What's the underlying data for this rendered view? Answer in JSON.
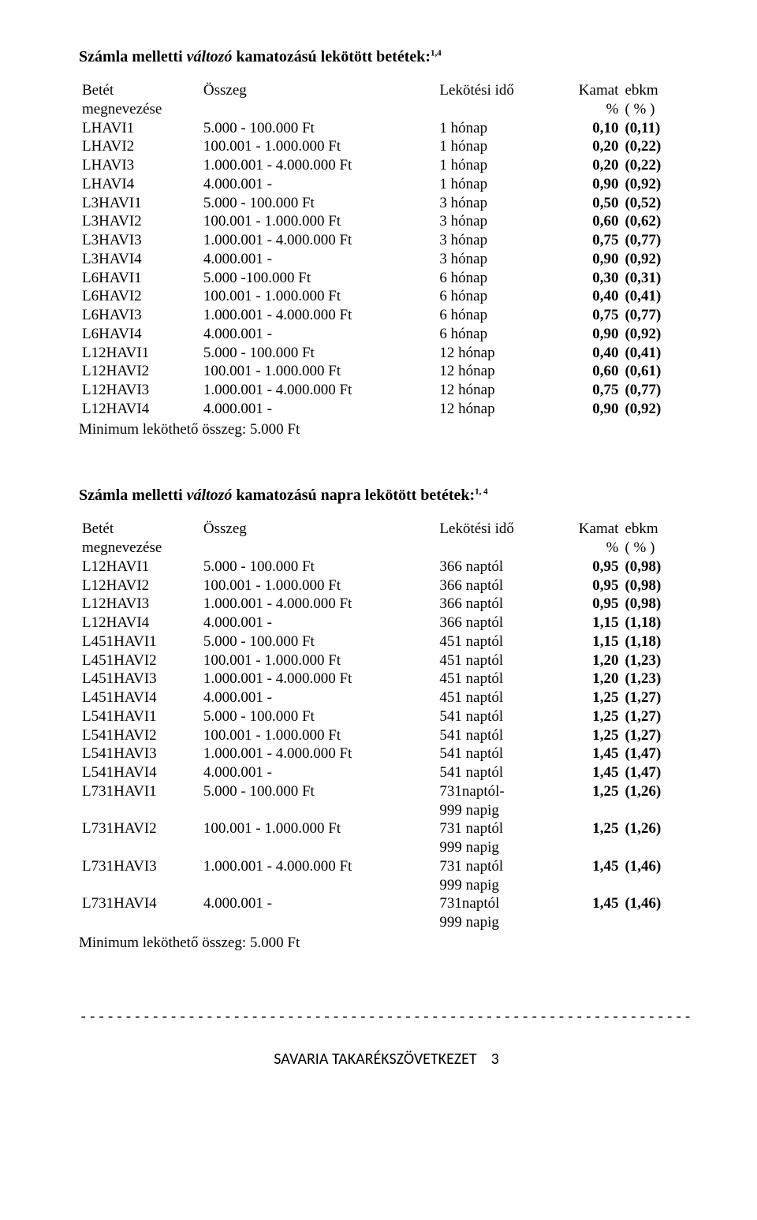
{
  "section1": {
    "title_pre": "Számla melletti ",
    "title_italic": "változó",
    "title_post": " kamatozású lekötött betétek:",
    "title_sup": "1,4",
    "header": {
      "name_line1": "Betét",
      "name_line2": "megnevezése",
      "amount": "Összeg",
      "term": "Lekötési idő",
      "rate_line1": "Kamat",
      "rate_line2": "%",
      "ebkm_line1": "ebkm",
      "ebkm_line2": "( % )"
    },
    "rows": [
      {
        "name": "LHAVI1",
        "amount": "5.000 - 100.000 Ft",
        "term": "1 hónap",
        "rate": "0,10",
        "ebkm": "(0,11)"
      },
      {
        "name": "LHAVI2",
        "amount": "100.001 - 1.000.000 Ft",
        "term": "1 hónap",
        "rate": "0,20",
        "ebkm": "(0,22)"
      },
      {
        "name": "LHAVI3",
        "amount": "1.000.001 - 4.000.000 Ft",
        "term": "1 hónap",
        "rate": "0,20",
        "ebkm": "(0,22)"
      },
      {
        "name": "LHAVI4",
        "amount": "4.000.001 -",
        "term": "1 hónap",
        "rate": "0,90",
        "ebkm": "(0,92)"
      },
      {
        "name": "L3HAVI1",
        "amount": "5.000 - 100.000 Ft",
        "term": "3 hónap",
        "rate": "0,50",
        "ebkm": "(0,52)"
      },
      {
        "name": "L3HAVI2",
        "amount": "100.001 - 1.000.000 Ft",
        "term": "3 hónap",
        "rate": "0,60",
        "ebkm": "(0,62)"
      },
      {
        "name": "L3HAVI3",
        "amount": "1.000.001 - 4.000.000 Ft",
        "term": "3 hónap",
        "rate": "0,75",
        "ebkm": "(0,77)"
      },
      {
        "name": "L3HAVI4",
        "amount": "4.000.001 -",
        "term": "3 hónap",
        "rate": "0,90",
        "ebkm": "(0,92)"
      },
      {
        "name": "L6HAVI1",
        "amount": "5.000 -100.000 Ft",
        "term": "6 hónap",
        "rate": "0,30",
        "ebkm": "(0,31)"
      },
      {
        "name": "L6HAVI2",
        "amount": "100.001 - 1.000.000 Ft",
        "term": "6 hónap",
        "rate": "0,40",
        "ebkm": "(0,41)"
      },
      {
        "name": "L6HAVI3",
        "amount": "1.000.001 - 4.000.000 Ft",
        "term": "6 hónap",
        "rate": "0,75",
        "ebkm": "(0,77)"
      },
      {
        "name": "L6HAVI4",
        "amount": "4.000.001 -",
        "term": "6 hónap",
        "rate": "0,90",
        "ebkm": "(0,92)"
      },
      {
        "name": "L12HAVI1",
        "amount": "5.000 - 100.000 Ft",
        "term": "12 hónap",
        "rate": "0,40",
        "ebkm": "(0,41)"
      },
      {
        "name": "L12HAVI2",
        "amount": "100.001 - 1.000.000 Ft",
        "term": "12 hónap",
        "rate": "0,60",
        "ebkm": "(0,61)"
      },
      {
        "name": "L12HAVI3",
        "amount": "1.000.001 - 4.000.000 Ft",
        "term": "12 hónap",
        "rate": "0,75",
        "ebkm": "(0,77)"
      },
      {
        "name": "L12HAVI4",
        "amount": "4.000.001 -",
        "term": "12 hónap",
        "rate": "0,90",
        "ebkm": "(0,92)"
      }
    ],
    "note": "Minimum leköthető összeg: 5.000 Ft"
  },
  "section2": {
    "title_pre": "Számla melletti ",
    "title_italic": "változó",
    "title_post": " kamatozású napra lekötött betétek:",
    "title_sup": "1, 4",
    "header": {
      "name_line1": "Betét",
      "name_line2": "megnevezése",
      "amount": "Összeg",
      "term": "Lekötési idő",
      "rate_line1": "Kamat",
      "rate_line2": "%",
      "ebkm_line1": "ebkm",
      "ebkm_line2": "( % )"
    },
    "rows": [
      {
        "name": "L12HAVI1",
        "amount": "5.000 - 100.000 Ft",
        "term": "366 naptól",
        "rate": "0,95",
        "ebkm": "(0,98)"
      },
      {
        "name": "L12HAVI2",
        "amount": "100.001 - 1.000.000 Ft",
        "term": "366 naptól",
        "rate": "0,95",
        "ebkm": "(0,98)"
      },
      {
        "name": "L12HAVI3",
        "amount": "1.000.001 - 4.000.000 Ft",
        "term": "366 naptól",
        "rate": "0,95",
        "ebkm": "(0,98)"
      },
      {
        "name": "L12HAVI4",
        "amount": "4.000.001 -",
        "term": "366 naptól",
        "rate": "1,15",
        "ebkm": "(1,18)"
      },
      {
        "name": "L451HAVI1",
        "amount": "5.000 - 100.000 Ft",
        "term": "451 naptól",
        "rate": "1,15",
        "ebkm": "(1,18)"
      },
      {
        "name": "L451HAVI2",
        "amount": "100.001 - 1.000.000 Ft",
        "term": "451 naptól",
        "rate": "1,20",
        "ebkm": "(1,23)"
      },
      {
        "name": "L451HAVI3",
        "amount": "1.000.001 - 4.000.000 Ft",
        "term": "451 naptól",
        "rate": "1,20",
        "ebkm": "(1,23)"
      },
      {
        "name": "L451HAVI4",
        "amount": "4.000.001 -",
        "term": "451 naptól",
        "rate": "1,25",
        "ebkm": "(1,27)"
      },
      {
        "name": "L541HAVI1",
        "amount": "5.000 - 100.000 Ft",
        "term": "541 naptól",
        "rate": "1,25",
        "ebkm": "(1,27)"
      },
      {
        "name": "L541HAVI2",
        "amount": "100.001 - 1.000.000 Ft",
        "term": "541 naptól",
        "rate": "1,25",
        "ebkm": "(1,27)"
      },
      {
        "name": "L541HAVI3",
        "amount": "1.000.001 - 4.000.000 Ft",
        "term": "541 naptól",
        "rate": "1,45",
        "ebkm": "(1,47)"
      },
      {
        "name": "L541HAVI4",
        "amount": "4.000.001 -",
        "term": "541 naptól",
        "rate": "1,45",
        "ebkm": "(1,47)"
      },
      {
        "name": "L731HAVI1",
        "amount": "5.000 - 100.000 Ft",
        "term": "731naptól-\n999 napig",
        "rate": "1,25",
        "ebkm": "(1,26)"
      },
      {
        "name": "L731HAVI2",
        "amount": "100.001 - 1.000.000 Ft",
        "term": "731 naptól\n999 napig",
        "rate": "1,25",
        "ebkm": "(1,26)"
      },
      {
        "name": "L731HAVI3",
        "amount": "1.000.001 - 4.000.000 Ft",
        "term": "731 naptól\n999 napig",
        "rate": "1,45",
        "ebkm": "(1,46)"
      },
      {
        "name": "L731HAVI4",
        "amount": "4.000.001 -",
        "term": "731naptól\n999 napig",
        "rate": "1,45",
        "ebkm": "(1,46)"
      }
    ],
    "note": "Minimum leköthető összeg: 5.000 Ft"
  },
  "divider": "--------------------------------------------------------------------------------------------",
  "footer": {
    "text": "SAVARIA TAKARÉKSZÖVETKEZET",
    "page": "3"
  }
}
